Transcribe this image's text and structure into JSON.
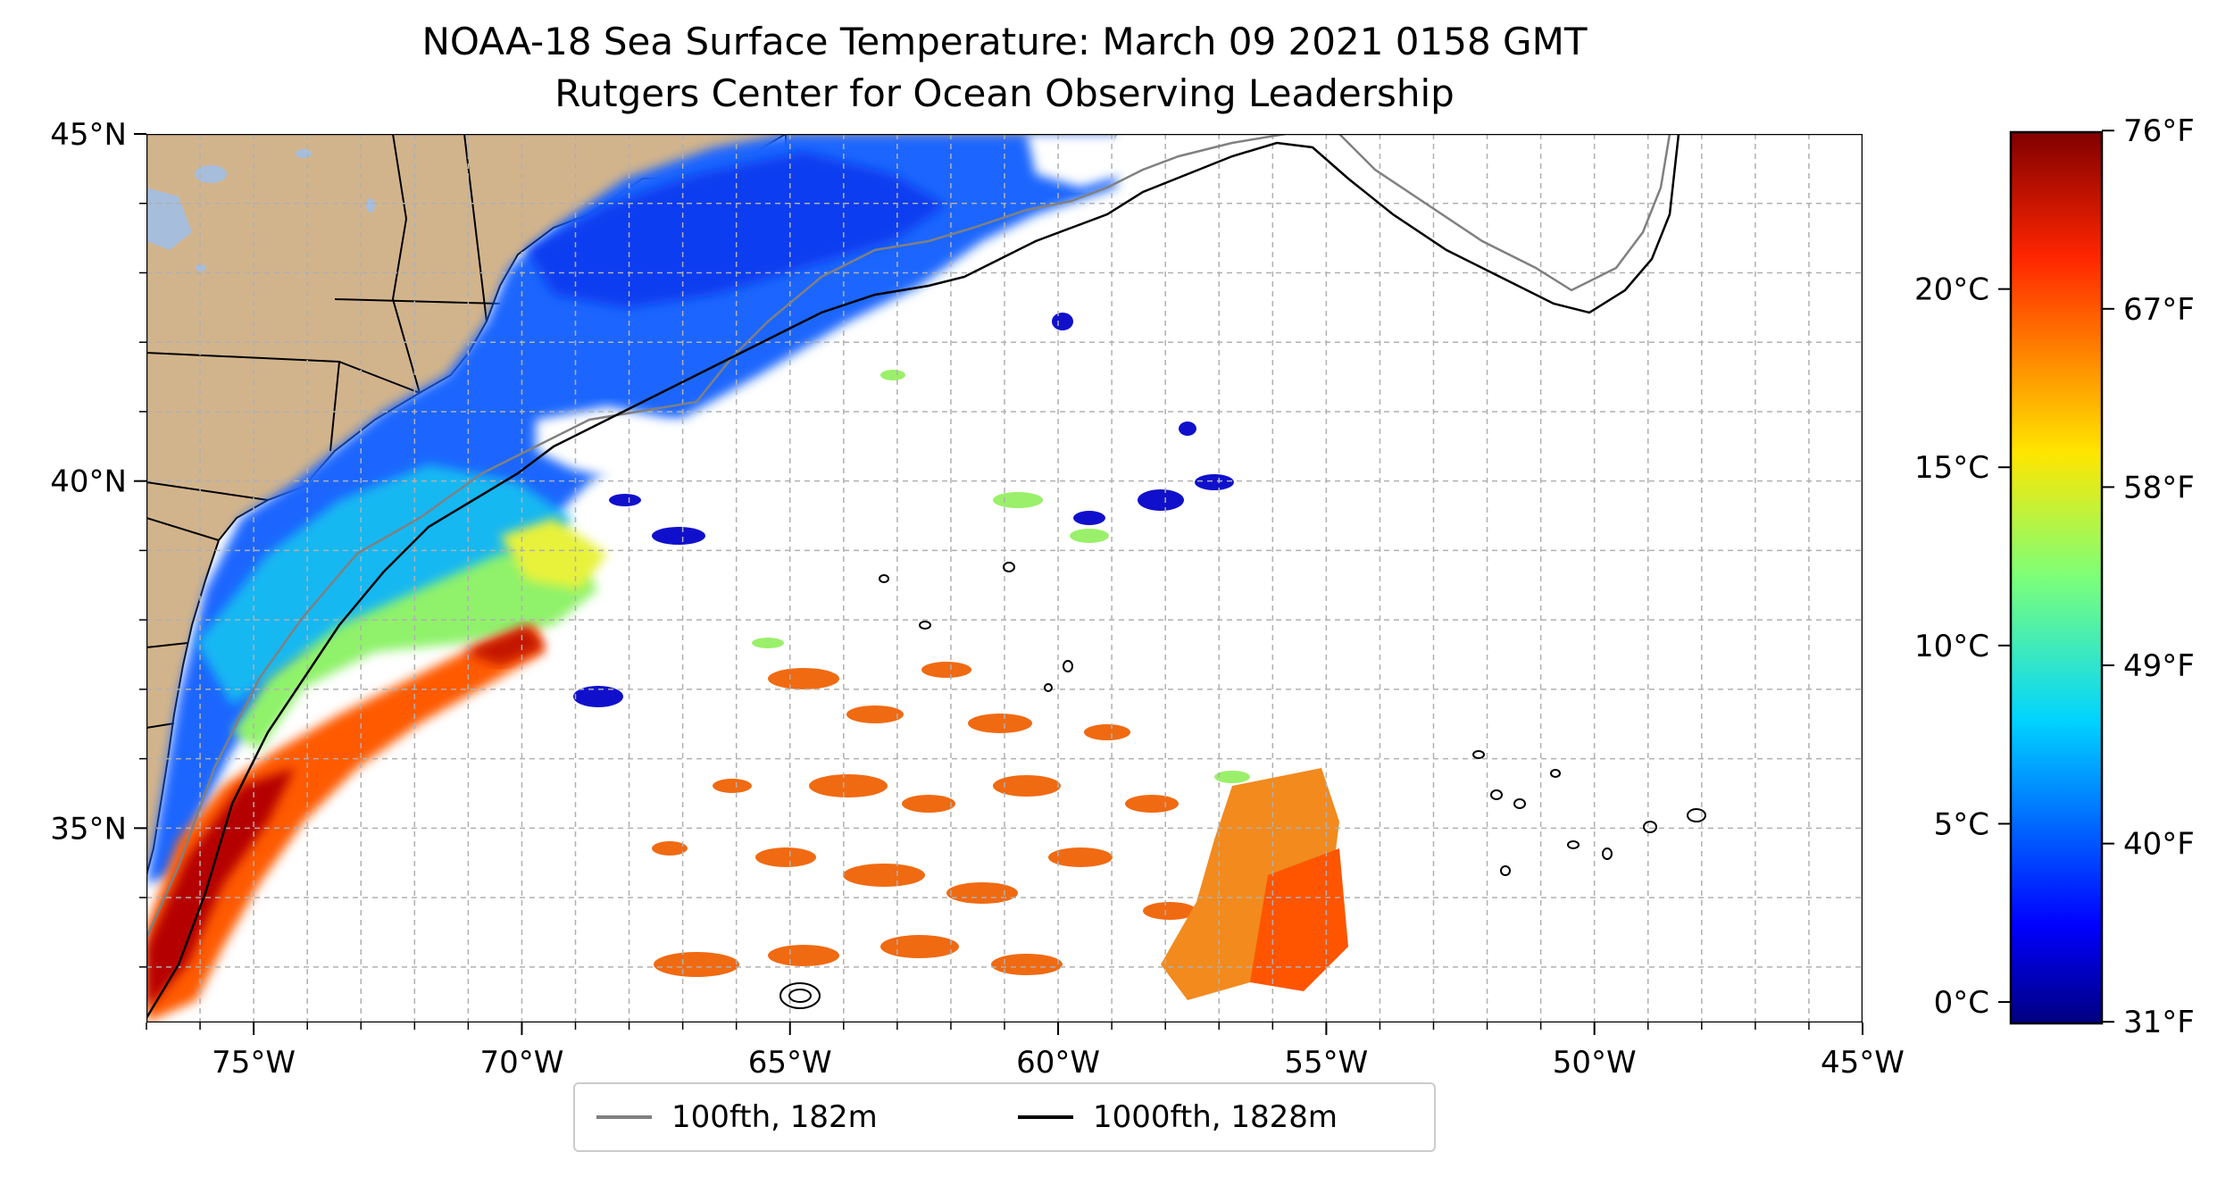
{
  "title": "NOAA-18 Sea Surface Temperature: March 09 2021 0158 GMT",
  "subtitle": "Rutgers Center for Ocean Observing Leadership",
  "map": {
    "lon_range": [
      -77,
      -45
    ],
    "lat_range": [
      32.2,
      45
    ],
    "lon_ticks": [
      {
        "value": -75,
        "label": "75°W"
      },
      {
        "value": -70,
        "label": "70°W"
      },
      {
        "value": -65,
        "label": "65°W"
      },
      {
        "value": -60,
        "label": "60°W"
      },
      {
        "value": -55,
        "label": "55°W"
      },
      {
        "value": -50,
        "label": "50°W"
      },
      {
        "value": -45,
        "label": "45°W"
      }
    ],
    "lat_ticks": [
      {
        "value": 45,
        "label": "45°N"
      },
      {
        "value": 40,
        "label": "40°N"
      },
      {
        "value": 35,
        "label": "35°N"
      }
    ],
    "grid": true,
    "land_color": "#d2b48c",
    "ocean_background": "#ffffff"
  },
  "colorbar": {
    "colormap": "jet",
    "celsius_range": [
      -0.6,
      24.4
    ],
    "celsius_ticks": [
      {
        "value": 0,
        "label": "0°C"
      },
      {
        "value": 5,
        "label": "5°C"
      },
      {
        "value": 10,
        "label": "10°C"
      },
      {
        "value": 15,
        "label": "15°C"
      },
      {
        "value": 20,
        "label": "20°C"
      }
    ],
    "fahrenheit_ticks": [
      {
        "value": 31,
        "label": "31°F"
      },
      {
        "value": 40,
        "label": "40°F"
      },
      {
        "value": 49,
        "label": "49°F"
      },
      {
        "value": 58,
        "label": "58°F"
      },
      {
        "value": 67,
        "label": "67°F"
      },
      {
        "value": 76,
        "label": "76°F"
      }
    ]
  },
  "legend": {
    "items": [
      {
        "label": "100fth, 182m",
        "color": "#808080"
      },
      {
        "label": "1000fth, 1828m",
        "color": "#000000"
      }
    ]
  }
}
